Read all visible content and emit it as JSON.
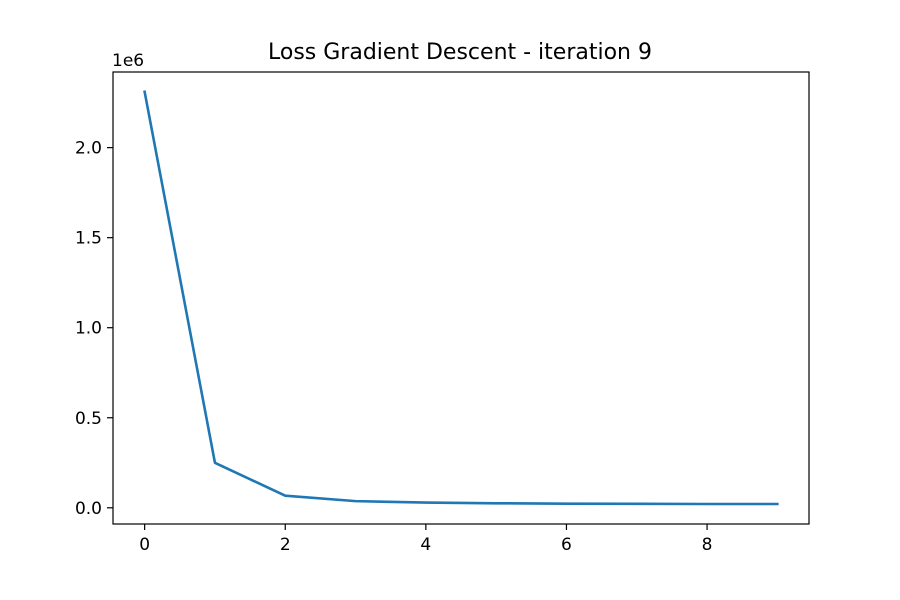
{
  "chart_data": {
    "type": "line",
    "title": "Loss Gradient Descent - iteration 9",
    "xlabel": "",
    "ylabel": "",
    "y_offset_label": "1e6",
    "xlim": [
      -0.45,
      9.45
    ],
    "ylim": [
      -0.09,
      2.42
    ],
    "x_ticks": [
      0,
      2,
      4,
      6,
      8
    ],
    "x_tick_labels": [
      "0",
      "2",
      "4",
      "6",
      "8"
    ],
    "y_ticks": [
      0.0,
      0.5,
      1.0,
      1.5,
      2.0
    ],
    "y_tick_labels": [
      "0.0",
      "0.5",
      "1.0",
      "1.5",
      "2.0"
    ],
    "grid": false,
    "series": [
      {
        "color": "#1f77b4",
        "x": [
          0,
          1,
          2,
          3,
          4,
          5,
          6,
          7,
          8,
          9
        ],
        "y": [
          2.31,
          0.25,
          0.067,
          0.037,
          0.029,
          0.025,
          0.023,
          0.022,
          0.021,
          0.021
        ]
      }
    ]
  }
}
